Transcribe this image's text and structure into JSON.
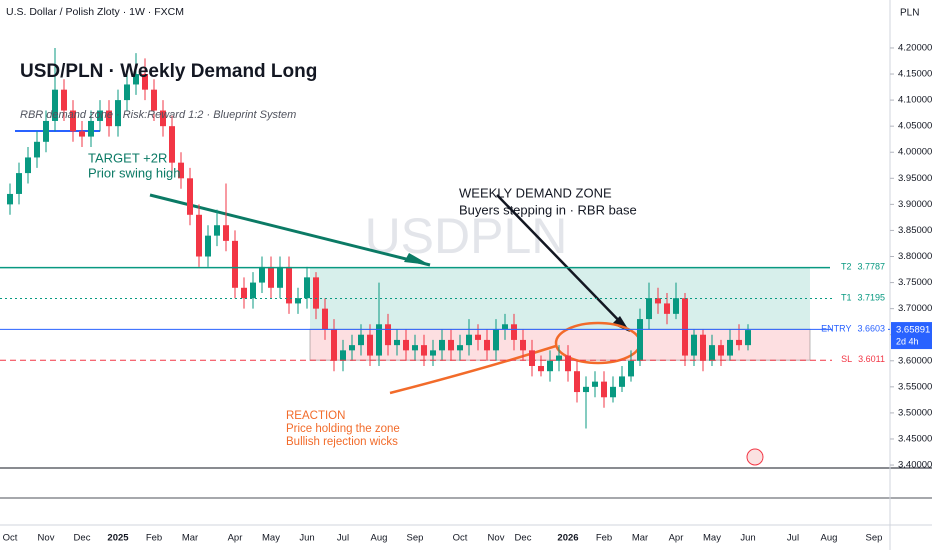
{
  "chart_data": {
    "type": "candlestick",
    "symbol_header": "U.S. Dollar / Polish Zloty · 1W · FXCM",
    "currency": "PLN",
    "title": "USD/PLN  ·  Weekly Demand Long",
    "subtitle": "RBR demand zone  ·  Risk:Reward 1:2  ·  Blueprint System",
    "watermark": "USDPLN",
    "annotations": [
      {
        "lines": [
          "TARGET +2R",
          "Prior swing high"
        ],
        "color": "#0b7a65"
      },
      {
        "lines": [
          "WEEKLY DEMAND ZONE",
          "Buyers stepping in · RBR base"
        ],
        "color": "#131722"
      },
      {
        "lines": [
          "REACTION",
          "Price holding the zone",
          "Bullish rejection wicks"
        ],
        "color": "#f26b2a"
      }
    ],
    "levels": [
      {
        "name": "T2",
        "value": 3.7787,
        "color": "#089981",
        "style": "solid"
      },
      {
        "name": "T1",
        "value": 3.7195,
        "color": "#089981",
        "style": "dotted"
      },
      {
        "name": "ENTRY",
        "value": 3.6603,
        "color": "#2962ff",
        "style": "solid"
      },
      {
        "name": "SL",
        "value": 3.6011,
        "color": "#f23645",
        "style": "dashed"
      }
    ],
    "last_price": {
      "value": 3.65891,
      "countdown": "2d 4h",
      "color": "#2962ff"
    },
    "up_color": "#089981",
    "down_color": "#f23645",
    "categories": [
      "Oct",
      null,
      null,
      null,
      "Nov",
      null,
      null,
      null,
      "Dec",
      null,
      null,
      null,
      "2025",
      null,
      null,
      null,
      "Feb",
      null,
      null,
      null,
      "Mar",
      null,
      null,
      null,
      null,
      "Apr",
      null,
      null,
      null,
      "May",
      null,
      null,
      null,
      "Jun",
      null,
      null,
      null,
      "Jul",
      null,
      null,
      null,
      "Aug",
      null,
      null,
      null,
      "Sep",
      null,
      null,
      null,
      null,
      "Oct",
      null,
      null,
      null,
      "Nov",
      null,
      null,
      "Dec",
      null,
      null,
      null,
      null,
      "2026",
      null,
      null,
      null,
      "Feb",
      null,
      null,
      null,
      "Mar",
      null,
      null,
      null,
      "Apr",
      null,
      null,
      null,
      "May",
      null,
      null,
      null,
      "Jun",
      null,
      null,
      null,
      null,
      "Jul",
      null,
      null,
      null,
      "Aug",
      null,
      null,
      null,
      null,
      "Sep",
      null
    ],
    "candles": [
      [
        3.9,
        3.94,
        3.88,
        3.92
      ],
      [
        3.92,
        3.98,
        3.9,
        3.96
      ],
      [
        3.96,
        4.01,
        3.94,
        3.99
      ],
      [
        3.99,
        4.04,
        3.97,
        4.02
      ],
      [
        4.02,
        4.08,
        4.0,
        4.06
      ],
      [
        4.06,
        4.2,
        4.04,
        4.12
      ],
      [
        4.12,
        4.14,
        4.06,
        4.08
      ],
      [
        4.08,
        4.1,
        4.02,
        4.04
      ],
      [
        4.04,
        4.06,
        4.01,
        4.03
      ],
      [
        4.03,
        4.08,
        4.01,
        4.06
      ],
      [
        4.06,
        4.1,
        4.04,
        4.08
      ],
      [
        4.08,
        4.1,
        4.03,
        4.05
      ],
      [
        4.05,
        4.12,
        4.03,
        4.1
      ],
      [
        4.1,
        4.16,
        4.08,
        4.13
      ],
      [
        4.13,
        4.19,
        4.11,
        4.15
      ],
      [
        4.15,
        4.18,
        4.1,
        4.12
      ],
      [
        4.12,
        4.14,
        4.06,
        4.08
      ],
      [
        4.08,
        4.1,
        4.03,
        4.05
      ],
      [
        4.05,
        4.07,
        3.96,
        3.98
      ],
      [
        3.98,
        4.0,
        3.93,
        3.95
      ],
      [
        3.95,
        3.97,
        3.86,
        3.88
      ],
      [
        3.88,
        3.9,
        3.78,
        3.8
      ],
      [
        3.8,
        3.86,
        3.78,
        3.84
      ],
      [
        3.84,
        3.89,
        3.82,
        3.86
      ],
      [
        3.86,
        3.94,
        3.81,
        3.83
      ],
      [
        3.83,
        3.85,
        3.72,
        3.74
      ],
      [
        3.74,
        3.76,
        3.7,
        3.72
      ],
      [
        3.72,
        3.77,
        3.7,
        3.75
      ],
      [
        3.75,
        3.8,
        3.73,
        3.78
      ],
      [
        3.78,
        3.8,
        3.72,
        3.74
      ],
      [
        3.74,
        3.8,
        3.72,
        3.78
      ],
      [
        3.78,
        3.8,
        3.69,
        3.71
      ],
      [
        3.71,
        3.74,
        3.69,
        3.72
      ],
      [
        3.72,
        3.78,
        3.7,
        3.76
      ],
      [
        3.76,
        3.77,
        3.68,
        3.7
      ],
      [
        3.7,
        3.72,
        3.64,
        3.66
      ],
      [
        3.66,
        3.68,
        3.58,
        3.6
      ],
      [
        3.6,
        3.64,
        3.58,
        3.62
      ],
      [
        3.62,
        3.65,
        3.6,
        3.63
      ],
      [
        3.63,
        3.67,
        3.61,
        3.65
      ],
      [
        3.65,
        3.67,
        3.59,
        3.61
      ],
      [
        3.61,
        3.75,
        3.59,
        3.67
      ],
      [
        3.67,
        3.69,
        3.61,
        3.63
      ],
      [
        3.63,
        3.66,
        3.61,
        3.64
      ],
      [
        3.64,
        3.66,
        3.6,
        3.62
      ],
      [
        3.62,
        3.65,
        3.6,
        3.63
      ],
      [
        3.63,
        3.65,
        3.59,
        3.61
      ],
      [
        3.61,
        3.64,
        3.59,
        3.62
      ],
      [
        3.62,
        3.66,
        3.6,
        3.64
      ],
      [
        3.64,
        3.66,
        3.6,
        3.62
      ],
      [
        3.62,
        3.65,
        3.6,
        3.63
      ],
      [
        3.63,
        3.68,
        3.61,
        3.65
      ],
      [
        3.65,
        3.67,
        3.62,
        3.64
      ],
      [
        3.64,
        3.66,
        3.6,
        3.62
      ],
      [
        3.62,
        3.68,
        3.6,
        3.66
      ],
      [
        3.66,
        3.69,
        3.64,
        3.67
      ],
      [
        3.67,
        3.69,
        3.62,
        3.64
      ],
      [
        3.64,
        3.66,
        3.6,
        3.62
      ],
      [
        3.62,
        3.64,
        3.57,
        3.59
      ],
      [
        3.59,
        3.61,
        3.57,
        3.58
      ],
      [
        3.58,
        3.62,
        3.56,
        3.6
      ],
      [
        3.6,
        3.63,
        3.58,
        3.61
      ],
      [
        3.61,
        3.63,
        3.56,
        3.58
      ],
      [
        3.58,
        3.6,
        3.52,
        3.54
      ],
      [
        3.54,
        3.57,
        3.47,
        3.55
      ],
      [
        3.55,
        3.58,
        3.53,
        3.56
      ],
      [
        3.56,
        3.58,
        3.51,
        3.53
      ],
      [
        3.53,
        3.57,
        3.52,
        3.55
      ],
      [
        3.55,
        3.59,
        3.54,
        3.57
      ],
      [
        3.57,
        3.62,
        3.56,
        3.6
      ],
      [
        3.6,
        3.7,
        3.59,
        3.68
      ],
      [
        3.68,
        3.75,
        3.66,
        3.72
      ],
      [
        3.72,
        3.74,
        3.69,
        3.71
      ],
      [
        3.71,
        3.73,
        3.67,
        3.69
      ],
      [
        3.69,
        3.75,
        3.68,
        3.72
      ],
      [
        3.72,
        3.73,
        3.59,
        3.61
      ],
      [
        3.61,
        3.66,
        3.59,
        3.65
      ],
      [
        3.65,
        3.66,
        3.58,
        3.6
      ],
      [
        3.6,
        3.65,
        3.59,
        3.63
      ],
      [
        3.63,
        3.64,
        3.59,
        3.61
      ],
      [
        3.61,
        3.66,
        3.6,
        3.64
      ],
      [
        3.64,
        3.67,
        3.62,
        3.63
      ],
      [
        3.63,
        3.67,
        3.62,
        3.65891
      ],
      null,
      null,
      null,
      null,
      null,
      null,
      null,
      null,
      null,
      null,
      null,
      null,
      null,
      null,
      null
    ],
    "ylim": [
      3.285,
      4.292
    ],
    "yticks": [
      {
        "value": 4.2,
        "label": "4.20000"
      },
      {
        "value": 4.15,
        "label": "4.15000"
      },
      {
        "value": 4.1,
        "label": "4.10000"
      },
      {
        "value": 4.05,
        "label": "4.05000"
      },
      {
        "value": 4.0,
        "label": "4.00000"
      },
      {
        "value": 3.95,
        "label": "3.95000"
      },
      {
        "value": 3.9,
        "label": "3.90000"
      },
      {
        "value": 3.85,
        "label": "3.85000"
      },
      {
        "value": 3.8,
        "label": "3.80000"
      },
      {
        "value": 3.75,
        "label": "3.75000"
      },
      {
        "value": 3.7,
        "label": "3.70000"
      },
      {
        "value": 3.65,
        "label": "3.65000"
      },
      {
        "value": 3.6,
        "label": "3.60000"
      },
      {
        "value": 3.55,
        "label": "3.55000"
      },
      {
        "value": 3.5,
        "label": "3.50000"
      },
      {
        "value": 3.45,
        "label": "3.45000"
      },
      {
        "value": 3.4,
        "label": "3.40000"
      }
    ]
  }
}
